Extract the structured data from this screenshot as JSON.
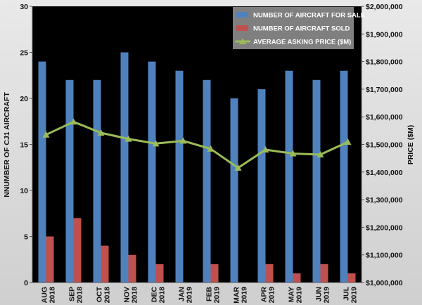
{
  "chart_data": {
    "type": "bar",
    "categories": [
      [
        "AUG",
        "2018"
      ],
      [
        "SEP",
        "2018"
      ],
      [
        "OCT",
        "2018"
      ],
      [
        "NOV",
        "2018"
      ],
      [
        "DEC",
        "2018"
      ],
      [
        "JAN",
        "2019"
      ],
      [
        "FEB",
        "2019"
      ],
      [
        "MAR",
        "2019"
      ],
      [
        "APR",
        "2019"
      ],
      [
        "MAY",
        "2019"
      ],
      [
        "JUN",
        "2019"
      ],
      [
        "JUL",
        "2019"
      ]
    ],
    "series": [
      {
        "name": "NUMBER OF AIRCRAFT FOR SALE",
        "type": "bar",
        "axis": "left",
        "color": "#4f81bd",
        "values": [
          24,
          22,
          22,
          25,
          24,
          23,
          22,
          20,
          21,
          23,
          22,
          23
        ]
      },
      {
        "name": "NUMBER OF AIRCRAFT SOLD",
        "type": "bar",
        "axis": "left",
        "color": "#c0504d",
        "values": [
          5,
          7,
          4,
          3,
          2,
          0,
          2,
          0,
          2,
          1,
          2,
          1
        ]
      },
      {
        "name": "AVERAGE ASKING PRICE ($M)",
        "type": "line",
        "axis": "right",
        "color": "#9bbb59",
        "values": [
          1535000,
          1582000,
          1542000,
          1520000,
          1503000,
          1513000,
          1484000,
          1415000,
          1481000,
          1467000,
          1463000,
          1509000
        ]
      }
    ],
    "y_left": {
      "label": "NNUMBER OF CJ1 AIRCRAFT",
      "min": 0,
      "max": 30,
      "ticks": [
        "0",
        "5",
        "10",
        "15",
        "20",
        "25",
        "30"
      ],
      "tick_values": [
        0,
        5,
        10,
        15,
        20,
        25,
        30
      ]
    },
    "y_right": {
      "label": "PRICE ($M)",
      "min": 1000000,
      "max": 2000000,
      "ticks": [
        "$1,000,000",
        "$1,100,000",
        "$1,200,000",
        "$1,300,000",
        "$1,400,000",
        "$1,500,000",
        "$1,600,000",
        "$1,700,000",
        "$1,800,000",
        "$1,900,000",
        "$2,000,000"
      ],
      "tick_values": [
        1000000,
        1100000,
        1200000,
        1300000,
        1400000,
        1500000,
        1600000,
        1700000,
        1800000,
        1900000,
        2000000
      ]
    },
    "plot_background": "#000000",
    "legend_background": "#7f7f7f",
    "legend_position": "top-right",
    "grid": false
  }
}
